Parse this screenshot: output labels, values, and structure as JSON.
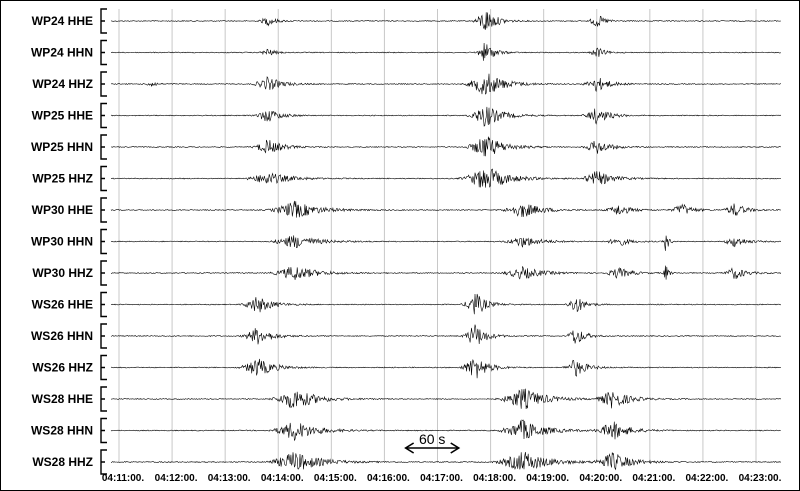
{
  "chart_data": {
    "type": "line",
    "title": "",
    "xlabel": "",
    "ylabel": "",
    "x_ticks": [
      "04:11:00.",
      "04:12:00.",
      "04:13:00.",
      "04:14:00.",
      "04:15:00.",
      "04:16:00.",
      "04:17:00.",
      "04:18:00.",
      "04:19:00.",
      "04:20:00.",
      "04:21:00.",
      "04:22:00.",
      "04:23:00."
    ],
    "x_range_minutes": [
      10.7,
      23.4
    ],
    "grid": "vertical",
    "series_color": "#000000",
    "grid_color": "#c8c8c8",
    "scale_bar": {
      "label": "60 s",
      "start_min": 16.4,
      "end_min": 17.4
    },
    "channels": [
      {
        "name": "WP24 HHE",
        "bursts": [
          [
            13.8,
            0.25,
            0.35
          ],
          [
            17.9,
            0.3,
            1.0
          ],
          [
            20.0,
            0.22,
            0.55
          ]
        ]
      },
      {
        "name": "WP24 HHN",
        "bursts": [
          [
            13.8,
            0.22,
            0.3
          ],
          [
            17.9,
            0.25,
            0.85
          ],
          [
            20.0,
            0.2,
            0.45
          ]
        ]
      },
      {
        "name": "WP24 HHZ",
        "bursts": [
          [
            11.6,
            0.12,
            0.35
          ],
          [
            13.8,
            0.4,
            0.55
          ],
          [
            17.9,
            0.5,
            1.0
          ],
          [
            20.0,
            0.35,
            0.6
          ]
        ]
      },
      {
        "name": "WP25 HHE",
        "bursts": [
          [
            13.8,
            0.35,
            0.55
          ],
          [
            17.9,
            0.45,
            0.9
          ],
          [
            20.0,
            0.35,
            0.65
          ]
        ]
      },
      {
        "name": "WP25 HHN",
        "bursts": [
          [
            13.8,
            0.4,
            0.6
          ],
          [
            17.9,
            0.5,
            0.95
          ],
          [
            20.0,
            0.35,
            0.6
          ]
        ]
      },
      {
        "name": "WP25 HHZ",
        "bursts": [
          [
            13.8,
            0.6,
            0.5
          ],
          [
            17.9,
            0.6,
            1.0
          ],
          [
            20.0,
            0.45,
            0.6
          ]
        ]
      },
      {
        "name": "WP30 HHE",
        "bursts": [
          [
            14.3,
            0.65,
            0.7
          ],
          [
            18.6,
            0.55,
            0.6
          ],
          [
            20.4,
            0.35,
            0.45
          ],
          [
            21.6,
            0.3,
            0.5
          ],
          [
            22.6,
            0.3,
            0.55
          ]
        ]
      },
      {
        "name": "WP30 HHN",
        "bursts": [
          [
            14.3,
            0.6,
            0.55
          ],
          [
            18.6,
            0.5,
            0.45
          ],
          [
            20.4,
            0.3,
            0.4
          ],
          [
            21.3,
            0.08,
            0.9
          ],
          [
            22.6,
            0.3,
            0.45
          ]
        ]
      },
      {
        "name": "WP30 HHZ",
        "bursts": [
          [
            14.3,
            0.6,
            0.6
          ],
          [
            18.6,
            0.55,
            0.5
          ],
          [
            20.4,
            0.35,
            0.45
          ],
          [
            21.3,
            0.08,
            0.7
          ],
          [
            22.6,
            0.3,
            0.5
          ]
        ]
      },
      {
        "name": "WS26 HHE",
        "bursts": [
          [
            13.6,
            0.4,
            0.7
          ],
          [
            17.7,
            0.3,
            1.0
          ],
          [
            19.6,
            0.25,
            0.75
          ]
        ]
      },
      {
        "name": "WS26 HHN",
        "bursts": [
          [
            13.6,
            0.4,
            0.7
          ],
          [
            17.7,
            0.3,
            1.0
          ],
          [
            19.6,
            0.25,
            0.75
          ]
        ]
      },
      {
        "name": "WS26 HHZ",
        "bursts": [
          [
            13.6,
            0.45,
            0.75
          ],
          [
            17.7,
            0.35,
            1.0
          ],
          [
            19.6,
            0.3,
            0.75
          ]
        ]
      },
      {
        "name": "WS28 HHE",
        "bursts": [
          [
            14.3,
            0.6,
            0.85
          ],
          [
            18.6,
            0.6,
            0.9
          ],
          [
            20.3,
            0.45,
            0.75
          ]
        ]
      },
      {
        "name": "WS28 HHN",
        "bursts": [
          [
            14.3,
            0.6,
            0.8
          ],
          [
            18.6,
            0.6,
            0.85
          ],
          [
            20.3,
            0.45,
            0.75
          ]
        ]
      },
      {
        "name": "WS28 HHZ",
        "bursts": [
          [
            14.3,
            0.7,
            0.8
          ],
          [
            18.6,
            0.7,
            0.85
          ],
          [
            20.3,
            0.5,
            0.75
          ]
        ]
      }
    ]
  }
}
